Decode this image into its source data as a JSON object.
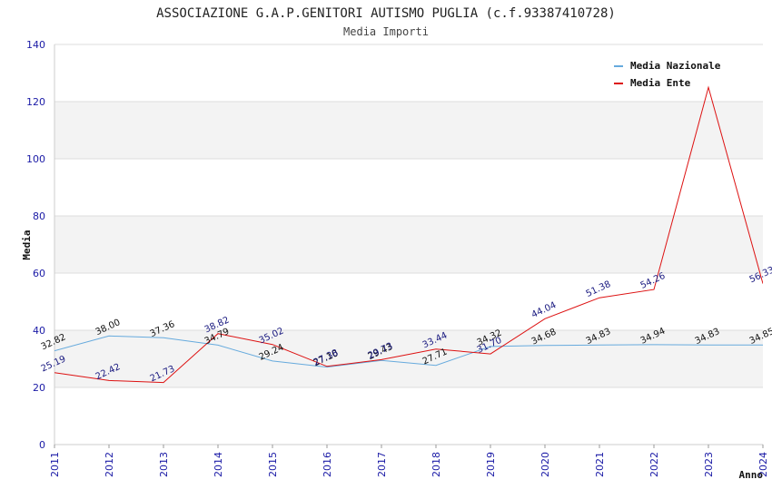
{
  "chart_data": {
    "type": "line",
    "title": "ASSOCIAZIONE G.A.P.GENITORI AUTISMO PUGLIA (c.f.93387410728)",
    "subtitle": "Media Importi",
    "xlabel": "Anno",
    "ylabel": "Media",
    "x": [
      "2011",
      "2012",
      "2013",
      "2014",
      "2015",
      "2016",
      "2017",
      "2018",
      "2019",
      "2020",
      "2021",
      "2022",
      "2023",
      "2024"
    ],
    "ylim": [
      0,
      140
    ],
    "yticks": [
      0,
      20,
      40,
      60,
      80,
      100,
      120,
      140
    ],
    "grid": true,
    "legend_position": "top-right",
    "series": [
      {
        "name": "Media Nazionale",
        "color": "#66aadd",
        "label_color": "#111111",
        "values": [
          32.82,
          38.0,
          37.36,
          34.79,
          29.24,
          27.1,
          29.43,
          27.71,
          34.32,
          34.68,
          34.83,
          34.94,
          34.83,
          34.85
        ],
        "labels": [
          "32.82",
          "38.00",
          "37.36",
          "34.79",
          "29.24",
          "27.10",
          "29.43",
          "27.71",
          "34.32",
          "34.68",
          "34.83",
          "34.94",
          "34.83",
          "34.85"
        ]
      },
      {
        "name": "Media Ente",
        "color": "#dd1111",
        "label_color": "#1a1a80",
        "values": [
          25.19,
          22.42,
          21.73,
          38.82,
          35.02,
          27.38,
          29.73,
          33.44,
          31.7,
          44.04,
          51.38,
          54.26,
          125.0,
          56.33
        ],
        "labels": [
          "25.19",
          "22.42",
          "21.73",
          "38.82",
          "35.02",
          "27.38",
          "29.73",
          "33.44",
          "31.70",
          "44.04",
          "51.38",
          "54.26",
          "",
          "56.33"
        ]
      }
    ]
  }
}
